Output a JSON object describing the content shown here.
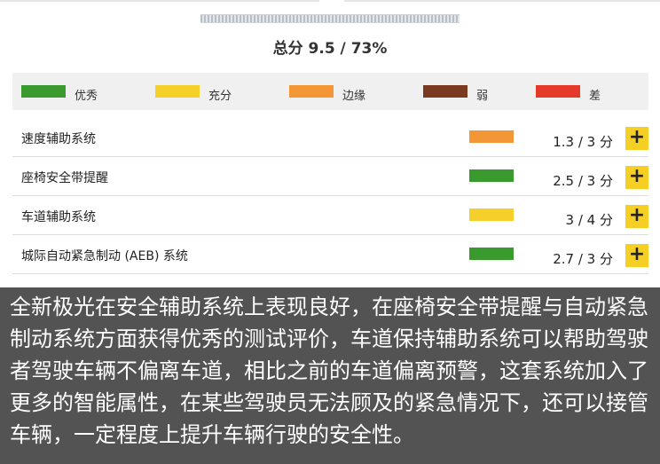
{
  "summary": {
    "total_score_text": "总分 9.5 / 73%"
  },
  "colors": {
    "excellent": "#3b9a2e",
    "sufficient": "#f5cf2a",
    "marginal": "#f39635",
    "weak": "#7a3a22",
    "poor": "#e53a2a",
    "plus_button": "#f5cf24",
    "caption_bg": "#535353"
  },
  "legend": [
    {
      "label": "优秀",
      "color": "#3b9a2e"
    },
    {
      "label": "充分",
      "color": "#f5cf2a"
    },
    {
      "label": "边缘",
      "color": "#f39635"
    },
    {
      "label": "弱",
      "color": "#7a3a22"
    },
    {
      "label": "差",
      "color": "#e53a2a"
    }
  ],
  "rows": [
    {
      "label": "速度辅助系统",
      "rating": "边缘",
      "color": "#f39635",
      "score": "1.3 / 3 分",
      "button": "+"
    },
    {
      "label": "座椅安全带提醒",
      "rating": "优秀",
      "color": "#3b9a2e",
      "score": "2.5 / 3 分",
      "button": "+"
    },
    {
      "label": "车道辅助系统",
      "rating": "充分",
      "color": "#f5cf2a",
      "score": "3 / 4 分",
      "button": "+"
    },
    {
      "label": "城际自动紧急制动 (AEB) 系统",
      "rating": "优秀",
      "color": "#3b9a2e",
      "score": "2.7 / 3 分",
      "button": "+"
    }
  ],
  "caption": {
    "text": "全新极光在安全辅助系统上表现良好，在座椅安全带提醒与自动紧急制动系统方面获得优秀的测试评价，车道保持辅助系统可以帮助驾驶者驾驶车辆不偏离车道，相比之前的车道偏离预警，这套系统加入了更多的智能属性，在某些驾驶员无法顾及的紧急情况下，还可以接管车辆，一定程度上提升车辆行驶的安全性。"
  }
}
